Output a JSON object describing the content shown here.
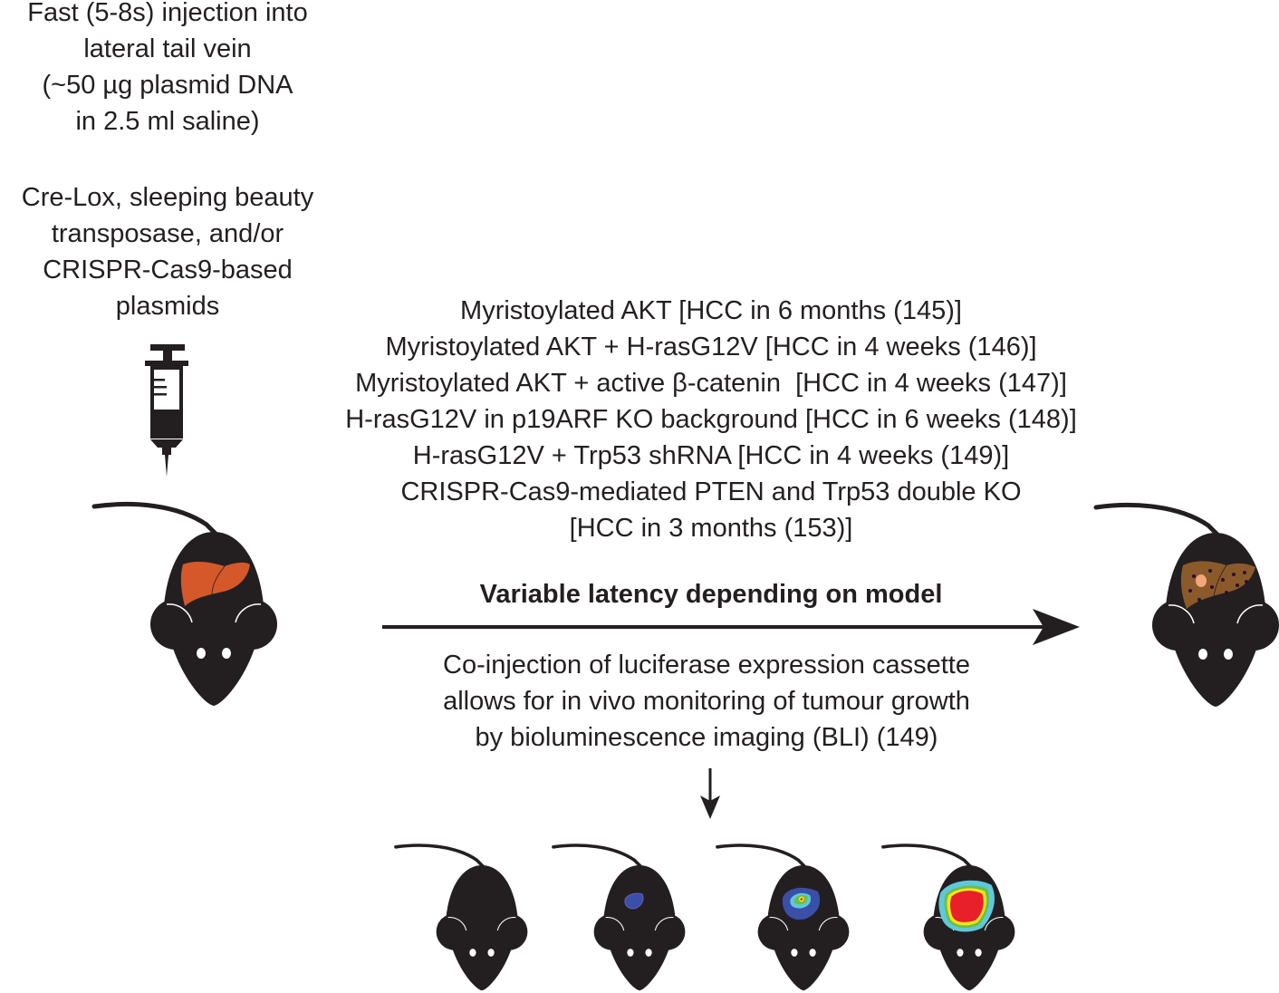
{
  "injection": {
    "lines": [
      "Fast (5-8s) injection into",
      "lateral tail vein",
      "(~50 µg plasmid DNA",
      "in 2.5 ml saline)"
    ]
  },
  "plasmids": {
    "lines": [
      "Cre-Lox, sleeping beauty",
      "transposase, and/or",
      "CRISPR-Cas9-based",
      "plasmids"
    ]
  },
  "models": {
    "lines": [
      "Myristoylated AKT [HCC in 6 months (145)]",
      "Myristoylated AKT + H-rasG12V [HCC in 4 weeks (146)]",
      "Myristoylated AKT + active β-catenin  [HCC in 4 weeks (147)]",
      "H-rasG12V in p19ARF KO background [HCC in 6 weeks (148)]",
      "H-rasG12V + Trp53 shRNA [HCC in 4 weeks (149)]",
      "CRISPR-Cas9-mediated PTEN and Trp53 double KO",
      "[HCC in 3 months (153)]"
    ]
  },
  "arrow_label": "Variable latency depending on model",
  "bli": {
    "lines": [
      "Co-injection of luciferase expression cassette",
      "allows for in vivo monitoring of tumour growth",
      "by bioluminescence imaging (BLI) (149)"
    ]
  },
  "colors": {
    "mouse": "#231f20",
    "healthy_liver": "#d4582a",
    "tumour_liver": "#8b5a2b",
    "tumour_nodule": "#f4a57a",
    "bli_blue": "#3a4fa8",
    "bli_cyan": "#5fc8dc",
    "bli_green": "#6abf4b",
    "bli_yellow": "#f5e612",
    "bli_red": "#e8202a"
  }
}
